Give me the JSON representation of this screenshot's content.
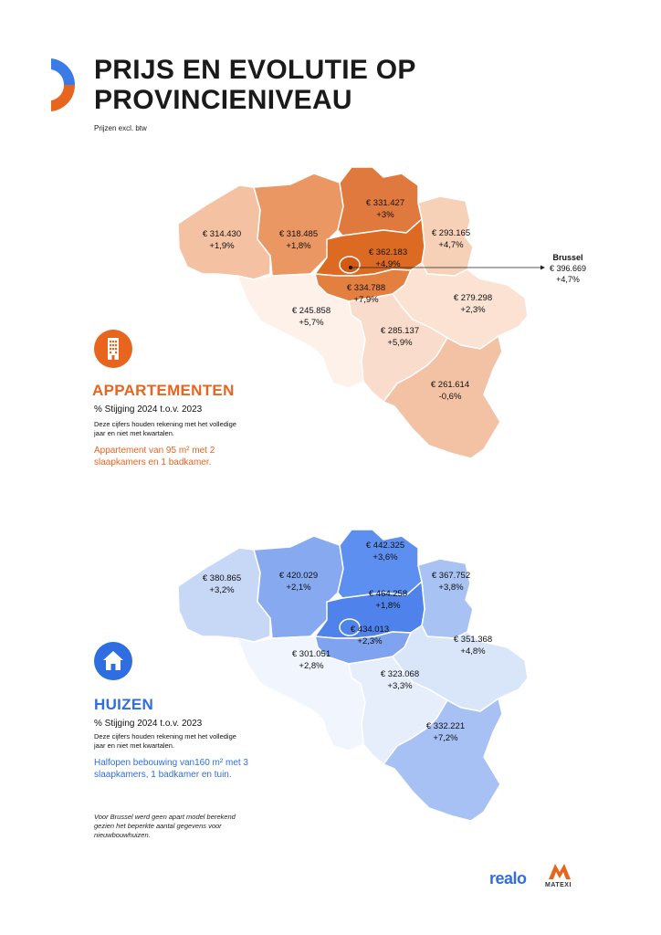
{
  "header": {
    "title_line1": "PRIJS EN EVOLUTIE OP",
    "title_line2": "PROVINCIENIVEAU",
    "subtitle": "Prijzen excl. btw"
  },
  "apartments": {
    "title": "APPARTEMENTEN",
    "pct_label": "% Stijging 2024 t.o.v. 2023",
    "note": "Deze cijfers houden rekening met het volledige jaar en niet met kwartalen.",
    "desc": "Appartement van 95 m² met 2 slaapkamers en 1 badkamer.",
    "icon": "apartment-building-icon",
    "accent": "#e8651e",
    "provinces": [
      {
        "price": "€ 314.430",
        "change": "+1,9%"
      },
      {
        "price": "€ 318.485",
        "change": "+1,8%"
      },
      {
        "price": "€ 331.427",
        "change": "+3%"
      },
      {
        "price": "€ 293.165",
        "change": "+4,7%"
      },
      {
        "price": "€ 362.183",
        "change": "+4,9%"
      },
      {
        "price": "€ 334.788",
        "change": "+7,9%"
      },
      {
        "price": "€ 245.858",
        "change": "+5,7%"
      },
      {
        "price": "€ 279.298",
        "change": "+2,3%"
      },
      {
        "price": "€ 285.137",
        "change": "+5,9%"
      },
      {
        "price": "€ 261.614",
        "change": "-0,6%"
      }
    ],
    "brussels": {
      "name": "Brussel",
      "price": "€ 396.669",
      "change": "+4,7%"
    }
  },
  "houses": {
    "title": "HUIZEN",
    "pct_label": "% Stijging 2024 t.o.v. 2023",
    "note": "Deze cijfers houden rekening met het volledige jaar en niet met kwartalen.",
    "desc": "Halfopen bebouwing van160 m² met 3 slaapkamers, 1 badkamer en tuin.",
    "icon": "house-icon",
    "accent": "#2f6ee0",
    "provinces": [
      {
        "price": "€ 380.865",
        "change": "+3,2%"
      },
      {
        "price": "€ 420.029",
        "change": "+2,1%"
      },
      {
        "price": "€ 442.325",
        "change": "+3,6%"
      },
      {
        "price": "€ 367.752",
        "change": "+3,8%"
      },
      {
        "price": "€ 464.258",
        "change": "+1,8%"
      },
      {
        "price": "€ 434.013",
        "change": "+2,3%"
      },
      {
        "price": "€ 301.051",
        "change": "+2,8%"
      },
      {
        "price": "€ 351.368",
        "change": "+4,8%"
      },
      {
        "price": "€ 323.068",
        "change": "+3,3%"
      },
      {
        "price": "€ 332.221",
        "change": "+7,2%"
      }
    ]
  },
  "footnote": "Voor Brussel werd geen apart model berekend gezien het beperkte aantal gegevens voor nieuwbouwhuizen.",
  "logos": {
    "realo": "realo",
    "matexi": "MATEXI"
  },
  "colors": {
    "orange": [
      "#f4c2a2",
      "#ea9763",
      "#e0793d",
      "#f6d1b8",
      "#dd6a22",
      "#e3803f",
      "#fdf1ea",
      "#fbe2d3",
      "#f9dccb",
      "#f3c2a4"
    ],
    "blue": [
      "#c7d8f7",
      "#86a9f0",
      "#5d8ff0",
      "#a8c2f4",
      "#4f82ea",
      "#7fa3ef",
      "#f1f5fd",
      "#d9e6f9",
      "#e7eefb",
      "#a7c1f4"
    ]
  }
}
